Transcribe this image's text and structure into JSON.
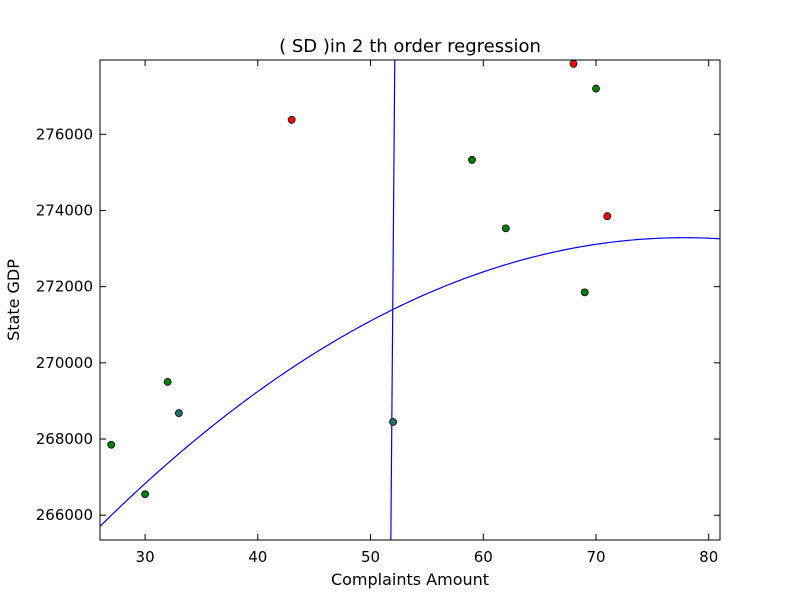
{
  "chart_data": {
    "type": "scatter",
    "title": "(  SD  )in 2 th order regression",
    "xlabel": "Complaints Amount",
    "ylabel": "State GDP",
    "xlim": [
      26,
      81
    ],
    "ylim": [
      265350,
      277950
    ],
    "xticks": [
      30,
      40,
      50,
      60,
      70,
      80
    ],
    "yticks": [
      266000,
      268000,
      270000,
      272000,
      274000,
      276000
    ],
    "grid": false,
    "points": [
      {
        "x": 27,
        "y": 267850,
        "color": "#008000"
      },
      {
        "x": 30,
        "y": 266550,
        "color": "#008000"
      },
      {
        "x": 32,
        "y": 269500,
        "color": "#008000"
      },
      {
        "x": 33,
        "y": 268680,
        "color": "#1f6f6f"
      },
      {
        "x": 43,
        "y": 276380,
        "color": "#ff0000"
      },
      {
        "x": 52,
        "y": 268450,
        "color": "#1f6f6f"
      },
      {
        "x": 59,
        "y": 275330,
        "color": "#008000"
      },
      {
        "x": 62,
        "y": 273530,
        "color": "#008000"
      },
      {
        "x": 68,
        "y": 277850,
        "color": "#ff0000"
      },
      {
        "x": 69,
        "y": 271850,
        "color": "#008000"
      },
      {
        "x": 70,
        "y": 277200,
        "color": "#008000"
      },
      {
        "x": 71,
        "y": 273850,
        "color": "#ff0000"
      }
    ],
    "curves": [
      {
        "kind": "function",
        "a": -2.82,
        "b": 439,
        "c": 256200,
        "color": "#0000ff"
      },
      {
        "kind": "segment",
        "points": [
          [
            51.8,
            265350
          ],
          [
            52.15,
            277950
          ]
        ],
        "color": "#0000ff"
      }
    ]
  }
}
